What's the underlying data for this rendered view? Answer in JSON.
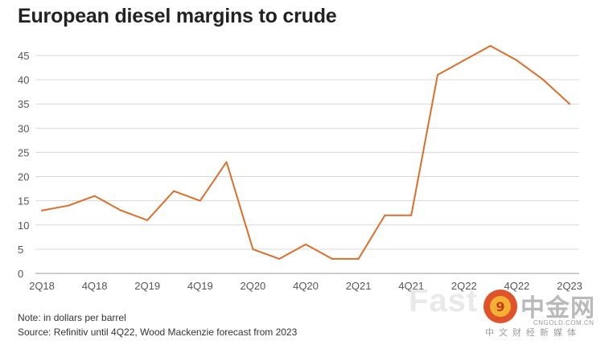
{
  "title": "European diesel margins to crude",
  "note": "Note: in dollars per barrel",
  "source": "Source: Refinitiv until 4Q22, Wood Mackenzie forecast from 2023",
  "watermark": {
    "fast_text": "Fast",
    "logo_glyph": "9",
    "logo_name": "中金网",
    "logo_url": "CNGOLD.COM.CN",
    "logo_tagline": "中文财经新媒体"
  },
  "colors": {
    "line": "#d96f2a",
    "grid": "#d9d9d9",
    "axis_text": "#555555"
  },
  "chart_data": {
    "type": "line",
    "title": "European diesel margins to crude",
    "x_tick_labels": [
      "2Q18",
      "4Q18",
      "2Q19",
      "4Q19",
      "2Q20",
      "4Q20",
      "2Q21",
      "4Q21",
      "2Q22",
      "4Q22",
      "2Q23"
    ],
    "y_ticks": [
      0,
      5,
      10,
      15,
      20,
      25,
      30,
      35,
      40,
      45
    ],
    "ylim": [
      0,
      45
    ],
    "grid": true,
    "series": [
      {
        "values": [
          13,
          14,
          16,
          13,
          11,
          17,
          15,
          23,
          5,
          3,
          6,
          3,
          3,
          12,
          12,
          41,
          44,
          47,
          44,
          40,
          35
        ]
      }
    ]
  }
}
